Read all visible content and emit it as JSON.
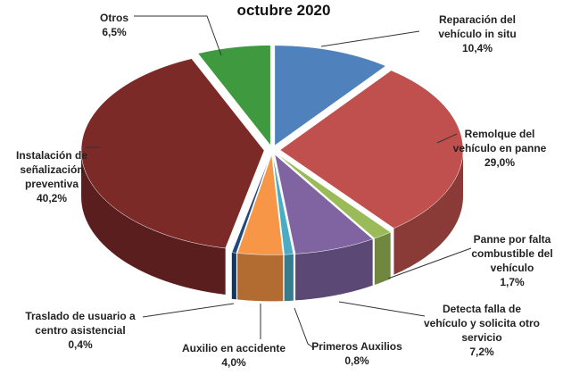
{
  "chart_data": {
    "type": "pie3d",
    "title": "octubre 2020",
    "categories": [
      "Reparación del vehículo in situ",
      "Remolque del vehículo en panne",
      "Panne por falta combustible del vehículo",
      "Detecta falla de vehículo y solicita otro servicio",
      "Primeros Auxilios",
      "Auxilio en accidente",
      "Traslado de usuario a centro asistencial",
      "Instalación de señalización preventiva",
      "Otros"
    ],
    "values": [
      10.4,
      29.0,
      1.7,
      7.2,
      0.8,
      4.0,
      0.4,
      40.2,
      6.5
    ],
    "value_labels": [
      "10,4%",
      "29,0%",
      "1,7%",
      "7,2%",
      "0,8%",
      "4,0%",
      "0,4%",
      "40,2%",
      "6,5%"
    ],
    "colors": [
      "#4f81bd",
      "#c0504d",
      "#9bbb59",
      "#8064a2",
      "#4bacc6",
      "#f79646",
      "#1f497d",
      "#7b2a28",
      "#3f9a3f"
    ]
  }
}
